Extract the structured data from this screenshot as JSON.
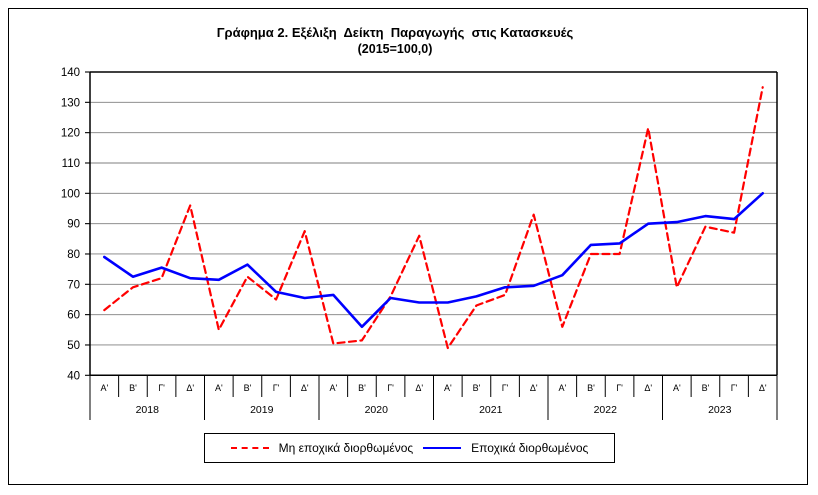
{
  "figure": {
    "title": "Γράφημα 2. Εξέλιξη  Δείκτη  Παραγωγής  στις Κατασκευές",
    "subtitle": "(2015=100,0)"
  },
  "chart_data": {
    "type": "line",
    "title": "Γράφημα 2. Εξέλιξη  Δείκτη  Παραγωγής  στις Κατασκευές",
    "subtitle": "(2015=100,0)",
    "ylim": [
      40,
      140
    ],
    "ytick_step": 10,
    "grid": "horizontal",
    "legend_position": "bottom",
    "years": [
      "2018",
      "2019",
      "2020",
      "2021",
      "2022",
      "2023"
    ],
    "quarters": [
      "Α'",
      "Β'",
      "Γ'",
      "Δ'"
    ],
    "series": [
      {
        "name": "Μη εποχικά διορθωμένος",
        "color": "#ff0000",
        "line_style": "dashed",
        "values": [
          61.5,
          69,
          72,
          96,
          55,
          72.5,
          65,
          87.5,
          50.5,
          51.5,
          66,
          86,
          49,
          63,
          66.5,
          93,
          56,
          80,
          80,
          121.5,
          69,
          89,
          87,
          135
        ]
      },
      {
        "name": "Εποχικά διορθωμένος",
        "color": "#0000ff",
        "line_style": "solid",
        "values": [
          79,
          72.5,
          75.5,
          72,
          71.5,
          76.5,
          67.5,
          65.5,
          66.5,
          56,
          65.5,
          64,
          64,
          66,
          69,
          69.5,
          73,
          83,
          83.5,
          90,
          90.5,
          92.5,
          91.5,
          100
        ]
      }
    ]
  }
}
